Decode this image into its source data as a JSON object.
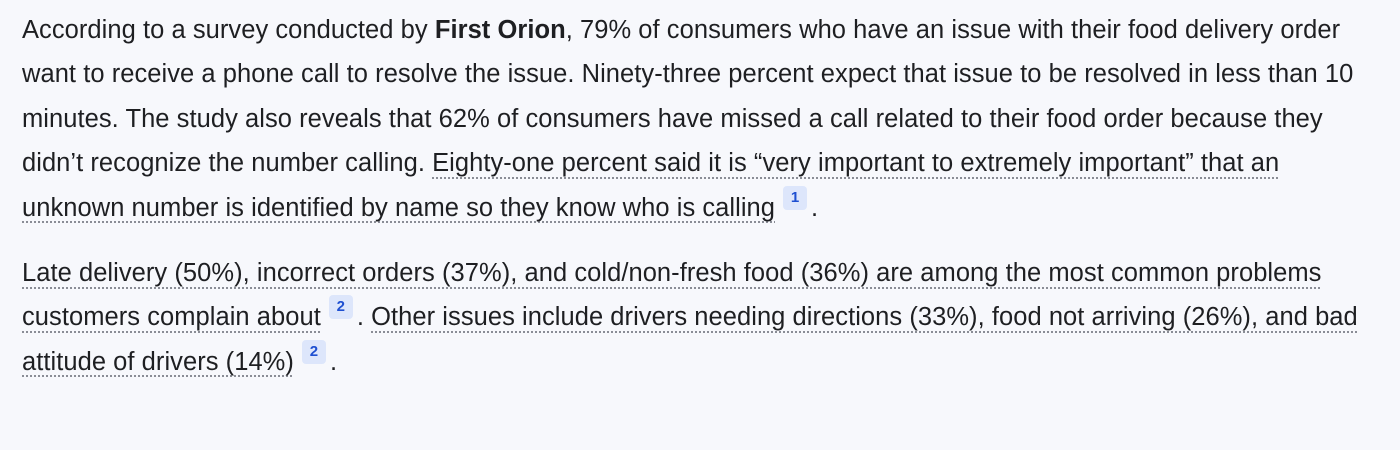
{
  "article": {
    "paragraph_1": {
      "s1_pre": "According to a survey conducted by ",
      "s1_bold": "First Orion",
      "s1_post": ", 79% of consumers who have an issue with their food delivery order want to receive a phone call to resolve the issue. Ninety-three percent expect that issue to be resolved in less than 10 minutes. The study also reveals that 62% of consumers have missed a call related to their food order because they didn’t recognize the number calling. ",
      "cited_text": "Eighty-one percent said it is “very important to extremely important” that an unknown number is identified by name so they know who is calling",
      "citation": "1",
      "end": "."
    },
    "paragraph_2": {
      "cited_1": "Late delivery (50%), incorrect orders (37%), and cold/non-fresh food (36%) are among the most common problems customers complain about",
      "citation_1": "2",
      "between": ". ",
      "cited_2": "Other issues include drivers needing directions (33%), food not arriving (26%), and bad attitude of drivers (14%)",
      "citation_2": "2",
      "end": "."
    }
  }
}
